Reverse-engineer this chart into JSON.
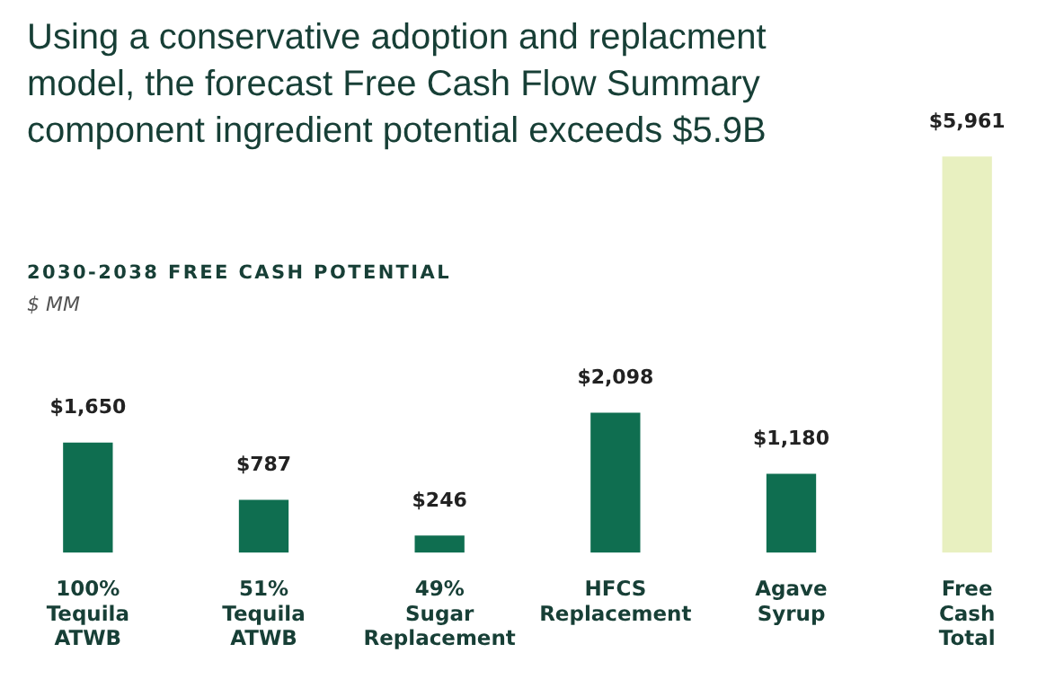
{
  "chart_data": {
    "type": "bar",
    "title": "Using a conservative adoption and replacment model, the forecast Free Cash Flow Summary component ingredient potential exceeds $5.9B",
    "subtitle": "2030-2038 FREE CASH POTENTIAL",
    "ylabel": "$ MM",
    "categories": [
      "100% Tequila ATWB",
      "51% Tequila ATWB",
      "49% Sugar Replacement",
      "HFCS Replacement",
      "Agave Syrup",
      "Free Cash Total"
    ],
    "values": [
      1650,
      787,
      246,
      2098,
      1180,
      5961
    ],
    "colors": [
      "#0f6e50",
      "#0f6e50",
      "#0f6e50",
      "#0f6e50",
      "#0f6e50",
      "#e8f0c0"
    ],
    "value_labels": [
      "$1,650",
      "$787",
      "$246",
      "$2,098",
      "$1,180",
      "$5,961"
    ],
    "legend": false,
    "grid": false,
    "tick_labels": "x"
  }
}
